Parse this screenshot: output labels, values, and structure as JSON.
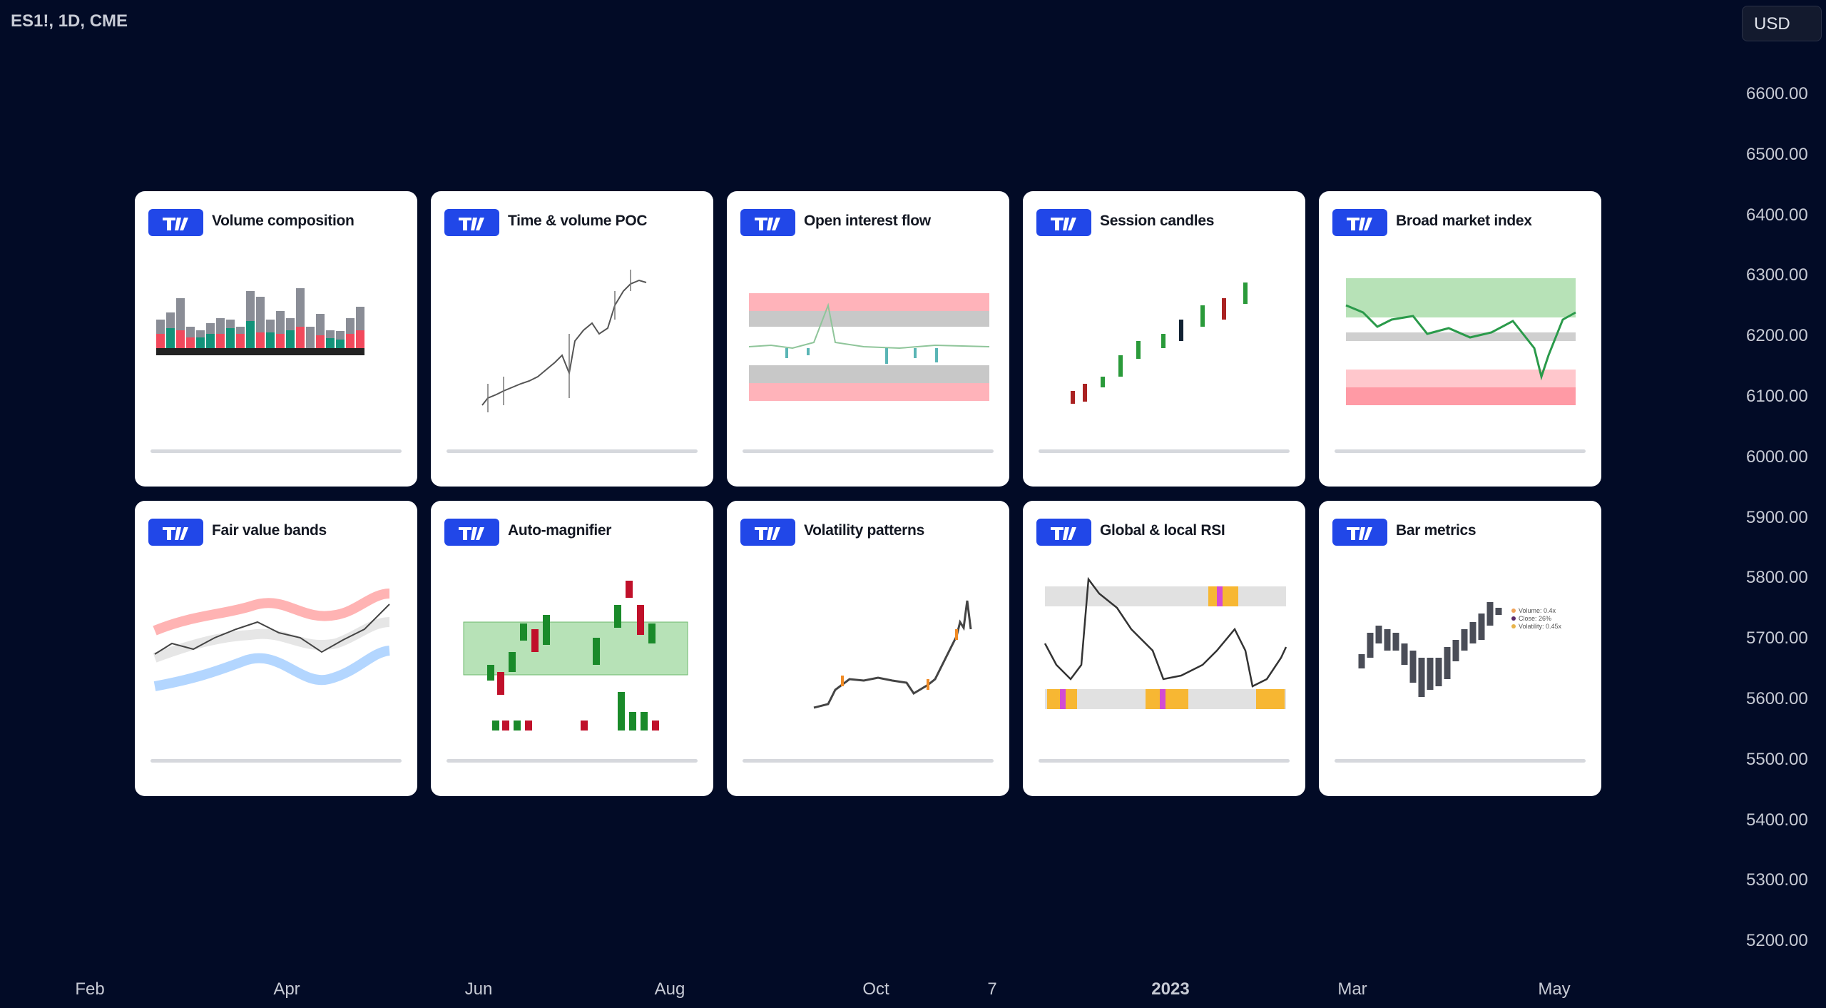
{
  "header": {
    "symbol": "ES1!, 1D, CME",
    "currency": "USD"
  },
  "price_axis": {
    "labels": [
      "6600.00",
      "6500.00",
      "6400.00",
      "6300.00",
      "6200.00",
      "6100.00",
      "6000.00",
      "5900.00",
      "5800.00",
      "5700.00",
      "5600.00",
      "5500.00",
      "5400.00",
      "5300.00",
      "5200.00"
    ]
  },
  "time_axis": {
    "labels": [
      "Feb",
      "Apr",
      "Jun",
      "Aug",
      "Oct",
      "7",
      "2023",
      "Mar",
      "May"
    ]
  },
  "cards": [
    {
      "title": "Volume composition"
    },
    {
      "title": "Time & volume POC"
    },
    {
      "title": "Open interest flow"
    },
    {
      "title": "Session candles"
    },
    {
      "title": "Broad market index"
    },
    {
      "title": "Fair value bands"
    },
    {
      "title": "Auto-magnifier"
    },
    {
      "title": "Volatility patterns"
    },
    {
      "title": "Global & local RSI"
    },
    {
      "title": "Bar metrics",
      "legend": [
        "Volume: 0.4x",
        "Close: 26%",
        "Volatility: 0.45x"
      ]
    }
  ]
}
